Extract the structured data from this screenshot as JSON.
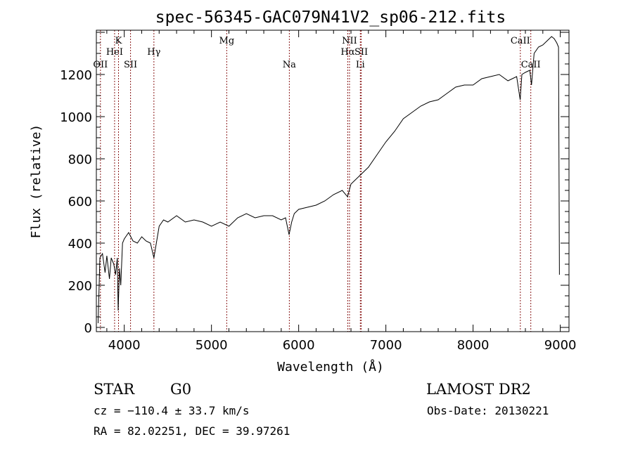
{
  "chart_data": {
    "type": "line",
    "title": "spec-56345-GAC079N41V2_sp06-212.fits",
    "xlabel": "Wavelength (Å)",
    "ylabel": "Flux (relative)",
    "xlim": [
      3680,
      9100
    ],
    "ylim": [
      -20,
      1410
    ],
    "xticks": [
      4000,
      5000,
      6000,
      7000,
      8000,
      9000
    ],
    "yticks": [
      0,
      200,
      400,
      600,
      800,
      1000,
      1200
    ],
    "grid": false,
    "series": [
      {
        "name": "spectrum",
        "x": [
          3700,
          3720,
          3750,
          3780,
          3800,
          3830,
          3850,
          3880,
          3900,
          3920,
          3930,
          3945,
          3960,
          3980,
          4000,
          4050,
          4100,
          4150,
          4200,
          4250,
          4300,
          4340,
          4360,
          4400,
          4450,
          4500,
          4600,
          4700,
          4800,
          4900,
          5000,
          5100,
          5200,
          5300,
          5400,
          5500,
          5600,
          5700,
          5800,
          5850,
          5890,
          5920,
          5950,
          6000,
          6100,
          6200,
          6300,
          6400,
          6500,
          6560,
          6600,
          6650,
          6700,
          6750,
          6800,
          6900,
          7000,
          7100,
          7200,
          7300,
          7400,
          7500,
          7600,
          7700,
          7800,
          7900,
          8000,
          8100,
          8200,
          8300,
          8400,
          8450,
          8500,
          8540,
          8560,
          8600,
          8650,
          8670,
          8700,
          8750,
          8800,
          8850,
          8900,
          8930,
          8960,
          8980,
          8990
        ],
        "y": [
          20,
          330,
          350,
          260,
          340,
          230,
          330,
          300,
          250,
          330,
          80,
          280,
          200,
          400,
          420,
          450,
          410,
          400,
          430,
          410,
          400,
          330,
          380,
          480,
          510,
          500,
          530,
          500,
          510,
          500,
          480,
          500,
          480,
          520,
          540,
          520,
          530,
          530,
          510,
          520,
          440,
          500,
          540,
          560,
          570,
          580,
          600,
          630,
          650,
          620,
          680,
          700,
          720,
          740,
          760,
          820,
          880,
          930,
          990,
          1020,
          1050,
          1070,
          1080,
          1110,
          1140,
          1150,
          1150,
          1180,
          1190,
          1200,
          1170,
          1180,
          1190,
          1080,
          1200,
          1210,
          1220,
          1150,
          1300,
          1330,
          1340,
          1360,
          1380,
          1370,
          1350,
          1330,
          250
        ]
      }
    ],
    "annotations": [
      {
        "label": "OII",
        "wavelength": 3727,
        "row": 3
      },
      {
        "label": "HeI",
        "wavelength": 3889,
        "row": 2
      },
      {
        "label": "K",
        "wavelength": 3934,
        "row": 1
      },
      {
        "label": "SII",
        "wavelength": 4072,
        "row": 3
      },
      {
        "label": "Hγ",
        "wavelength": 4340,
        "row": 2
      },
      {
        "label": "Mg",
        "wavelength": 5175,
        "row": 1
      },
      {
        "label": "Na",
        "wavelength": 5893,
        "row": 3
      },
      {
        "label": "Hα",
        "wavelength": 6563,
        "row": 2
      },
      {
        "label": "NII",
        "wavelength": 6583,
        "row": 1
      },
      {
        "label": "Li",
        "wavelength": 6707,
        "row": 3
      },
      {
        "label": "SII",
        "wavelength": 6717,
        "row": 2
      },
      {
        "label": "CaII",
        "wavelength": 8542,
        "row": 1
      },
      {
        "label": "CaII",
        "wavelength": 8662,
        "row": 3
      }
    ]
  },
  "info": {
    "object_class": "STAR",
    "subclass": "G0",
    "survey": "LAMOST DR2",
    "cz": "cz = −110.4 ± 33.7 km/s",
    "obs_date": "Obs-Date: 20130221",
    "coords": "RA =  82.02251, DEC =  39.97261"
  },
  "colors": {
    "line": "#000000",
    "marker": "#8b1a1a"
  }
}
